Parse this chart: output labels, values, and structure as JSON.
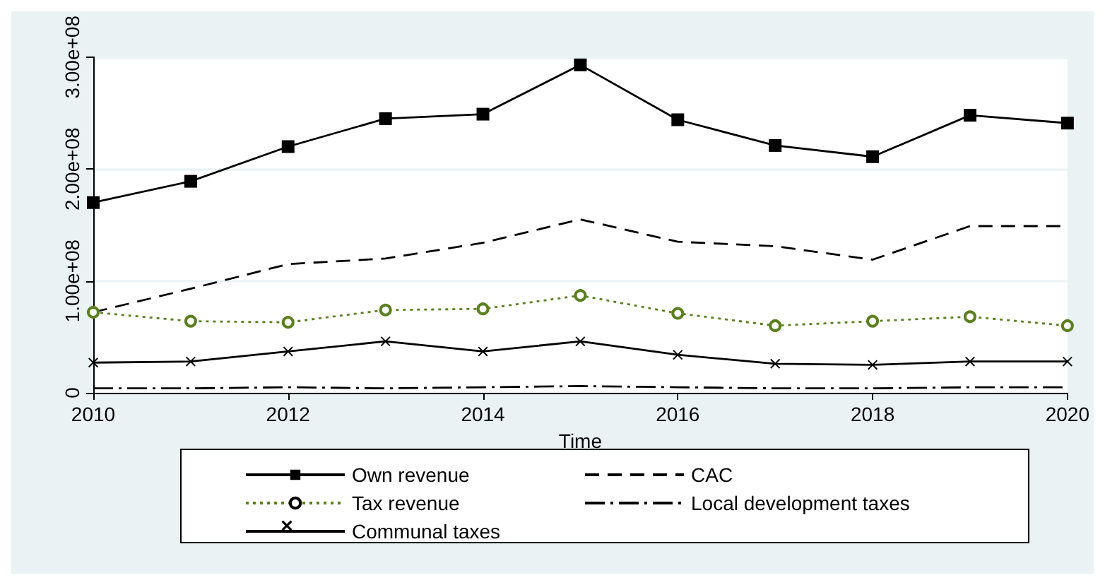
{
  "chart_data": {
    "type": "line",
    "xlabel": "Time",
    "x": [
      2010,
      2011,
      2012,
      2013,
      2014,
      2015,
      2016,
      2017,
      2018,
      2019,
      2020
    ],
    "xlim": [
      2010,
      2020
    ],
    "xticks": [
      2010,
      2012,
      2014,
      2016,
      2018,
      2020
    ],
    "ylim": [
      0,
      300000000
    ],
    "yticks": [
      {
        "value": 0,
        "label": "0"
      },
      {
        "value": 100000000,
        "label": "1.00e+08"
      },
      {
        "value": 200000000,
        "label": "2.00e+08"
      },
      {
        "value": 300000000,
        "label": "3.00e+08"
      }
    ],
    "grid": "y",
    "legend": "bottom",
    "series": [
      {
        "name": "Own revenue",
        "color": "#000000",
        "marker": "square",
        "line_style": "solid",
        "values": [
          170000000,
          189000000,
          220000000,
          245000000,
          249000000,
          293000000,
          244000000,
          221000000,
          211000000,
          248000000,
          241000000
        ]
      },
      {
        "name": "CAC",
        "color": "#000000",
        "marker": "none",
        "line_style": "dashed",
        "values": [
          72000000,
          93000000,
          115000000,
          120000000,
          134000000,
          155000000,
          135000000,
          131000000,
          119000000,
          149000000,
          149000000
        ]
      },
      {
        "name": "Tax revenue",
        "color": "#5a7f1e",
        "marker": "circle",
        "line_style": "dotted",
        "values": [
          72000000,
          64000000,
          63000000,
          74000000,
          75000000,
          87000000,
          71000000,
          60000000,
          64000000,
          68000000,
          60000000
        ]
      },
      {
        "name": "Local development taxes",
        "color": "#000000",
        "marker": "none",
        "line_style": "dashdot",
        "values": [
          4000000,
          4000000,
          5000000,
          4000000,
          5000000,
          6000000,
          5000000,
          4000000,
          4000000,
          5000000,
          5000000
        ]
      },
      {
        "name": "Communal taxes",
        "color": "#000000",
        "marker": "cross",
        "line_style": "solid",
        "values": [
          27000000,
          28000000,
          37000000,
          46000000,
          37000000,
          46000000,
          34000000,
          26000000,
          25000000,
          28000000,
          28000000
        ]
      }
    ]
  }
}
